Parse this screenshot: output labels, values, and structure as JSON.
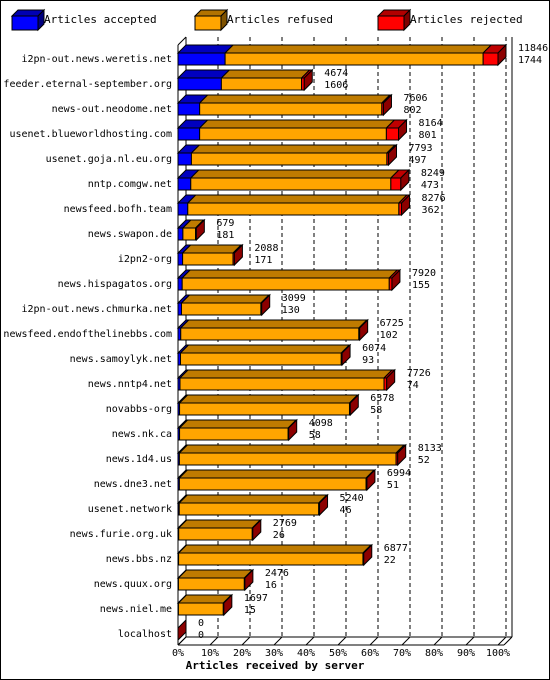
{
  "chart_data": {
    "type": "bar",
    "orientation": "horizontal",
    "stacked": true,
    "xlabel": "Articles received by server",
    "categories": [
      "i2pn-out.news.weretis.net",
      "feeder.eternal-september.org",
      "news-out.neodome.net",
      "usenet.blueworldhosting.com",
      "usenet.goja.nl.eu.org",
      "nntp.comgw.net",
      "newsfeed.bofh.team",
      "news.swapon.de",
      "i2pn2-org",
      "news.hispagatos.org",
      "i2pn-out.news.chmurka.net",
      "newsfeed.endofthelinebbs.com",
      "news.samoylyk.net",
      "news.nntp4.net",
      "novabbs-org",
      "news.nk.ca",
      "news.1d4.us",
      "news.dne3.net",
      "usenet.network",
      "news.furie.org.uk",
      "news.bbs.nz",
      "news.quux.org",
      "news.niel.me",
      "localhost"
    ],
    "totals": [
      11846,
      4674,
      7606,
      8164,
      7793,
      8249,
      8276,
      679,
      2088,
      7920,
      3099,
      6725,
      6074,
      7726,
      6378,
      4098,
      8133,
      6994,
      5240,
      2769,
      6877,
      2476,
      1697,
      0
    ],
    "series": [
      {
        "name": "Articles accepted",
        "color": "#0000ff",
        "values": [
          1744,
          1606,
          802,
          801,
          497,
          473,
          362,
          181,
          171,
          155,
          130,
          102,
          93,
          74,
          58,
          58,
          52,
          51,
          46,
          26,
          22,
          16,
          15,
          0
        ]
      },
      {
        "name": "Articles refused",
        "color": "#ffa500",
        "values": [
          9552,
          2968,
          6744,
          6913,
          7236,
          7406,
          7814,
          468,
          1867,
          7665,
          2939,
          6593,
          5951,
          7552,
          6290,
          4020,
          8021,
          6913,
          5164,
          2723,
          6825,
          2440,
          1662,
          0
        ]
      },
      {
        "name": "Articles rejected",
        "color": "#ff0000",
        "values": [
          550,
          100,
          60,
          450,
          60,
          370,
          100,
          30,
          50,
          100,
          30,
          30,
          30,
          100,
          30,
          20,
          60,
          30,
          30,
          20,
          30,
          20,
          20,
          0
        ]
      }
    ],
    "xlim": [
      0,
      11846
    ],
    "xticks": [
      {
        "value": 0,
        "label": "0%"
      },
      {
        "value": 1184.6,
        "label": "10%"
      },
      {
        "value": 2369.2,
        "label": "20%"
      },
      {
        "value": 3553.8,
        "label": "30%"
      },
      {
        "value": 4738.4,
        "label": "40%"
      },
      {
        "value": 5923,
        "label": "50%"
      },
      {
        "value": 7107.6,
        "label": "60%"
      },
      {
        "value": 8292.2,
        "label": "70%"
      },
      {
        "value": 9476.8,
        "label": "80%"
      },
      {
        "value": 10661.4,
        "label": "90%"
      },
      {
        "value": 11846,
        "label": "100%"
      }
    ],
    "grid": true,
    "legend": "top"
  }
}
